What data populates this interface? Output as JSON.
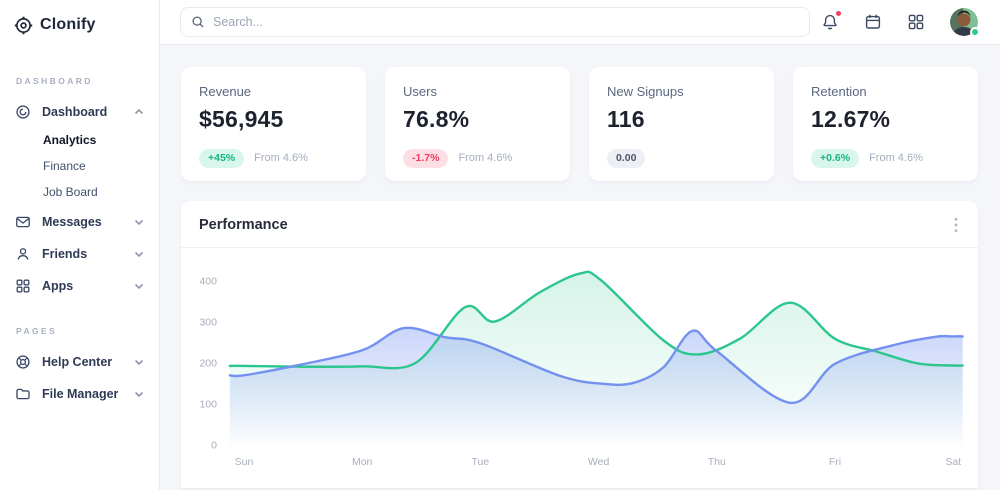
{
  "brand": {
    "name": "Clonify"
  },
  "topbar": {
    "search_placeholder": "Search...",
    "icons": [
      {
        "name": "bell-icon",
        "has_notification": true
      },
      {
        "name": "calendar-icon"
      },
      {
        "name": "apps-launcher-icon"
      }
    ],
    "avatar": {
      "status": "online"
    }
  },
  "sidebar": {
    "sections": [
      {
        "label": "DASHBOARD",
        "items": [
          {
            "label": "Dashboard",
            "icon": "dashboard-icon",
            "state": "expanded",
            "children": [
              "Analytics",
              "Finance",
              "Job Board"
            ],
            "active_child": "Analytics"
          },
          {
            "label": "Messages",
            "icon": "mail-icon",
            "state": "collapsed"
          },
          {
            "label": "Friends",
            "icon": "user-icon",
            "state": "collapsed"
          },
          {
            "label": "Apps",
            "icon": "apps-grid-icon",
            "state": "collapsed"
          }
        ]
      },
      {
        "label": "PAGES",
        "items": [
          {
            "label": "Help Center",
            "icon": "lifebuoy-icon",
            "state": "collapsed"
          },
          {
            "label": "File Manager",
            "icon": "folder-icon",
            "state": "collapsed"
          }
        ]
      }
    ]
  },
  "stats": [
    {
      "title": "Revenue",
      "value": "$56,945",
      "badge": "+45%",
      "badge_type": "positive",
      "caption": "From 4.6%"
    },
    {
      "title": "Users",
      "value": "76.8%",
      "badge": "-1.7%",
      "badge_type": "negative",
      "caption": "From 4.6%"
    },
    {
      "title": "New Signups",
      "value": "116",
      "badge": "0.00",
      "badge_type": "neutral",
      "caption": ""
    },
    {
      "title": "Retention",
      "value": "12.67%",
      "badge": "+0.6%",
      "badge_type": "positive",
      "caption": "From 4.6%"
    }
  ],
  "panel": {
    "title": "Performance"
  },
  "colors": {
    "positive": "#17b586",
    "negative": "#ef3e60",
    "series_green": "#2cc68d",
    "series_blue": "#7491f0",
    "notification_dot": "#f4405c",
    "presence_dot": "#2fc98c"
  },
  "chart_data": {
    "type": "area",
    "title": "Performance",
    "categories": [
      "Sun",
      "Mon",
      "Tue",
      "Wed",
      "Thu",
      "Fri",
      "Sat"
    ],
    "y_ticks": [
      0,
      100,
      200,
      300,
      400
    ],
    "ylim": [
      0,
      450
    ],
    "grid": false,
    "legend": false,
    "series": [
      {
        "name": "series-green",
        "color": "#2cc68d",
        "fill_top": "rgba(44,198,141,0.20)",
        "fill_bottom": "rgba(44,198,141,0)",
        "x": [
          0,
          0.5,
          1,
          1.45,
          1.87,
          2.12,
          2.5,
          2.84,
          3.02,
          3.55,
          3.84,
          4.2,
          4.62,
          5,
          5.35,
          5.7,
          6
        ],
        "values": [
          193,
          191,
          192,
          200,
          336,
          301,
          372,
          418,
          402,
          255,
          221,
          260,
          347,
          259,
          228,
          199,
          194
        ],
        "day_values": {
          "Sun": 193,
          "Mon": 192,
          "Tue": 320,
          "Wed": 402,
          "Thu": 228,
          "Fri": 259,
          "Sat": 194
        }
      },
      {
        "name": "series-blue",
        "color": "#7491f0",
        "fill_top": "rgba(116,145,240,0.38)",
        "fill_bottom": "rgba(116,145,240,0.02)",
        "x": [
          0,
          0.46,
          1,
          1.35,
          1.7,
          2,
          2.68,
          3.05,
          3.3,
          3.55,
          3.79,
          4,
          4.62,
          5,
          5.5,
          5.85,
          6
        ],
        "values": [
          170,
          195,
          231,
          285,
          263,
          248,
          168,
          149,
          152,
          190,
          278,
          229,
          103,
          198,
          244,
          264,
          265
        ],
        "day_values": {
          "Sun": 170,
          "Mon": 231,
          "Tue": 248,
          "Wed": 150,
          "Thu": 229,
          "Fri": 198,
          "Sat": 265
        }
      }
    ]
  }
}
